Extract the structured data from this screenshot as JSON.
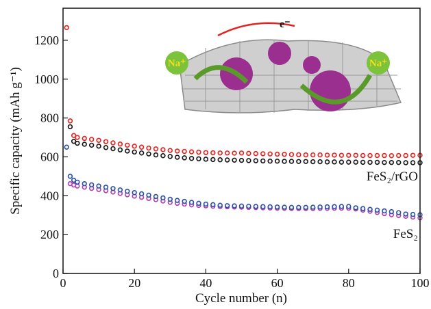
{
  "chart_data": {
    "type": "scatter",
    "x_label": "Cycle number (n)",
    "y_label": "Specific capacity (mAh g⁻¹)",
    "xlim": [
      0,
      100
    ],
    "xticks": [
      0,
      20,
      40,
      60,
      80,
      100
    ],
    "ylim": [
      0,
      1365
    ],
    "yticks": [
      0,
      200,
      400,
      600,
      800,
      1000,
      1200
    ],
    "x": [
      1,
      2,
      3,
      4,
      6,
      8,
      10,
      12,
      14,
      16,
      18,
      20,
      22,
      24,
      26,
      28,
      30,
      32,
      34,
      36,
      38,
      40,
      42,
      44,
      46,
      48,
      50,
      52,
      54,
      56,
      58,
      60,
      62,
      64,
      66,
      68,
      70,
      72,
      74,
      76,
      78,
      80,
      82,
      84,
      86,
      88,
      90,
      92,
      94,
      96,
      98,
      100
    ],
    "series": [
      {
        "color": "#e3231f",
        "values": [
          1265,
          785,
          710,
          700,
          695,
          690,
          685,
          678,
          672,
          666,
          660,
          655,
          650,
          645,
          641,
          637,
          633,
          630,
          628,
          626,
          624,
          622,
          621,
          620,
          620,
          619,
          620,
          618,
          617,
          616,
          615,
          614,
          613,
          612,
          611,
          610,
          610,
          610,
          609,
          609,
          608,
          608,
          608,
          607,
          607,
          607,
          607,
          606,
          607,
          607,
          608,
          608
        ]
      },
      {
        "color": "#151515",
        "values": [
          null,
          755,
          680,
          670,
          665,
          660,
          655,
          648,
          642,
          636,
          630,
          625,
          620,
          615,
          610,
          606,
          602,
          598,
          595,
          592,
          590,
          588,
          586,
          585,
          584,
          583,
          582,
          581,
          580,
          579,
          578,
          578,
          577,
          577,
          576,
          576,
          575,
          575,
          574,
          574,
          573,
          573,
          573,
          572,
          572,
          572,
          571,
          571,
          571,
          570,
          570,
          570
        ]
      },
      {
        "color": "#b03fae",
        "values": [
          null,
          462,
          455,
          450,
          444,
          438,
          432,
          426,
          419,
          412,
          405,
          398,
          392,
          386,
          380,
          373,
          366,
          361,
          357,
          353,
          350,
          348,
          346,
          344,
          343,
          342,
          341,
          340,
          339,
          338,
          337,
          336,
          335,
          334,
          334,
          334,
          334,
          335,
          335,
          336,
          336,
          336,
          332,
          326,
          320,
          314,
          308,
          302,
          298,
          294,
          290,
          286
        ]
      },
      {
        "color": "#2c4fa6",
        "values": [
          650,
          500,
          480,
          470,
          462,
          456,
          450,
          444,
          437,
          430,
          423,
          416,
          410,
          403,
          396,
          389,
          382,
          376,
          371,
          366,
          361,
          357,
          354,
          351,
          349,
          348,
          347,
          346,
          345,
          344,
          343,
          342,
          341,
          340,
          340,
          340,
          341,
          342,
          343,
          344,
          345,
          345,
          338,
          334,
          330,
          326,
          322,
          318,
          313,
          306,
          304,
          302
        ]
      }
    ],
    "annotations": [
      "FeS₂/rGO",
      "FeS₂"
    ],
    "inset_labels": [
      "e⁻",
      "Na⁺",
      "Na⁺"
    ]
  }
}
